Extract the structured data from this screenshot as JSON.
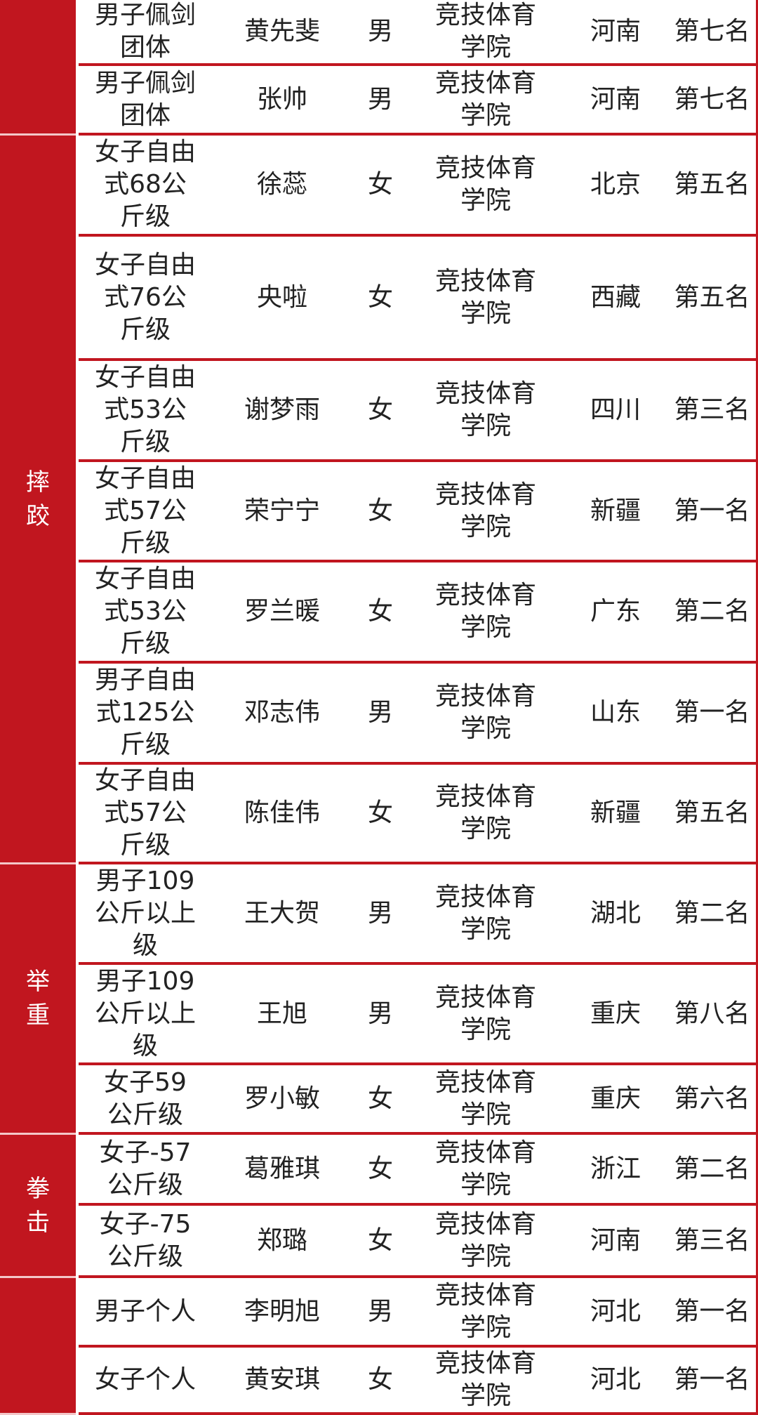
{
  "colors": {
    "accent": "#c1161f",
    "text": "#222222"
  },
  "groups": [
    {
      "label": "",
      "rows": [
        0,
        1
      ]
    },
    {
      "label": "摔跤",
      "rows": [
        2,
        8
      ]
    },
    {
      "label": "举重",
      "rows": [
        9,
        11
      ]
    },
    {
      "label": "拳击",
      "rows": [
        12,
        13
      ]
    },
    {
      "label": "",
      "rows": [
        14,
        15
      ]
    }
  ],
  "rows": [
    {
      "event": "男子佩剑团体",
      "name": "黄先斐",
      "sex": "男",
      "school": "竞技体育学院",
      "province": "河南",
      "rank": "第七名"
    },
    {
      "event": "男子佩剑团体",
      "name": "张帅",
      "sex": "男",
      "school": "竞技体育学院",
      "province": "河南",
      "rank": "第七名"
    },
    {
      "event": "女子自由式68公斤级",
      "name": "徐蕊",
      "sex": "女",
      "school": "竞技体育学院",
      "province": "北京",
      "rank": "第五名"
    },
    {
      "event": "女子自由式76公斤级",
      "name": "央啦",
      "sex": "女",
      "school": "竞技体育学院",
      "province": "西藏",
      "rank": "第五名"
    },
    {
      "event": "女子自由式53公斤级",
      "name": "谢梦雨",
      "sex": "女",
      "school": "竞技体育学院",
      "province": "四川",
      "rank": "第三名"
    },
    {
      "event": "女子自由式57公斤级",
      "name": "荣宁宁",
      "sex": "女",
      "school": "竞技体育学院",
      "province": "新疆",
      "rank": "第一名"
    },
    {
      "event": "女子自由式53公斤级",
      "name": "罗兰暖",
      "sex": "女",
      "school": "竞技体育学院",
      "province": "广东",
      "rank": "第二名"
    },
    {
      "event": "男子自由式125公斤级",
      "name": "邓志伟",
      "sex": "男",
      "school": "竞技体育学院",
      "province": "山东",
      "rank": "第一名"
    },
    {
      "event": "女子自由式57公斤级",
      "name": "陈佳伟",
      "sex": "女",
      "school": "竞技体育学院",
      "province": "新疆",
      "rank": "第五名"
    },
    {
      "event": "男子109公斤以上级",
      "name": "王大贺",
      "sex": "男",
      "school": "竞技体育学院",
      "province": "湖北",
      "rank": "第二名"
    },
    {
      "event": "男子109公斤以上级",
      "name": "王旭",
      "sex": "男",
      "school": "竞技体育学院",
      "province": "重庆",
      "rank": "第八名"
    },
    {
      "event": "女子59公斤级",
      "name": "罗小敏",
      "sex": "女",
      "school": "竞技体育学院",
      "province": "重庆",
      "rank": "第六名"
    },
    {
      "event": "女子-57公斤级",
      "name": "葛雅琪",
      "sex": "女",
      "school": "竞技体育学院",
      "province": "浙江",
      "rank": "第二名"
    },
    {
      "event": "女子-75公斤级",
      "name": "郑璐",
      "sex": "女",
      "school": "竞技体育学院",
      "province": "河南",
      "rank": "第三名"
    },
    {
      "event": "男子个人",
      "name": "李明旭",
      "sex": "男",
      "school": "竞技体育学院",
      "province": "河北",
      "rank": "第一名"
    },
    {
      "event": "女子个人",
      "name": "黄安琪",
      "sex": "女",
      "school": "竞技体育学院",
      "province": "河北",
      "rank": "第一名"
    }
  ]
}
